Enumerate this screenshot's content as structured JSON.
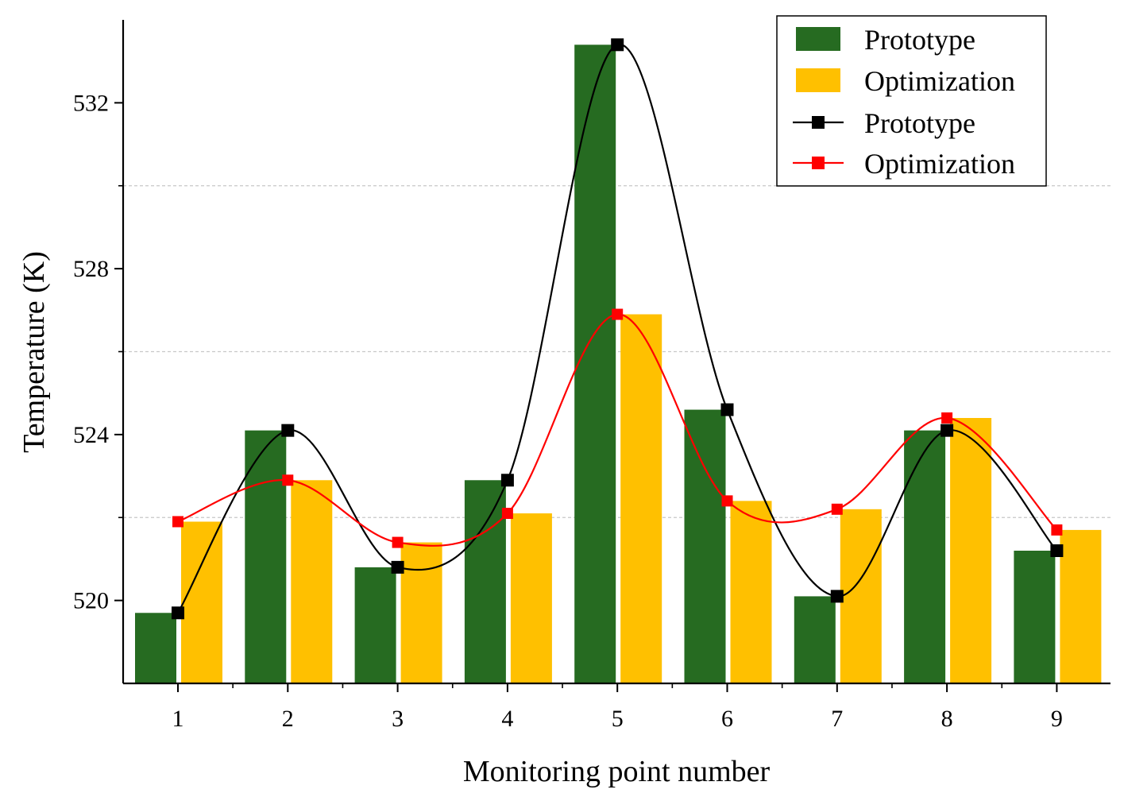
{
  "chart_data": {
    "type": "bar",
    "title": "",
    "xlabel": "Monitoring point number",
    "ylabel": "Temperature (K)",
    "categories": [
      "1",
      "2",
      "3",
      "4",
      "5",
      "6",
      "7",
      "8",
      "9"
    ],
    "ylim": [
      518,
      534
    ],
    "y_ticks": [
      520,
      524,
      528,
      532
    ],
    "y_tick_labels": [
      "520",
      "524",
      "528",
      "532"
    ],
    "gridlines": [
      522,
      526,
      530
    ],
    "bar_series": [
      {
        "name": "Prototype",
        "color": "#266B21",
        "values": [
          519.7,
          524.1,
          520.8,
          522.9,
          533.4,
          524.6,
          520.1,
          524.1,
          521.2
        ]
      },
      {
        "name": "Optimization",
        "color": "#FFC000",
        "values": [
          521.9,
          522.9,
          521.4,
          522.1,
          526.9,
          522.4,
          522.2,
          524.4,
          521.7
        ]
      }
    ],
    "line_series": [
      {
        "name": "Prototype",
        "color": "#000000",
        "values": [
          519.7,
          524.1,
          520.8,
          522.9,
          533.4,
          524.6,
          520.1,
          524.1,
          521.2
        ]
      },
      {
        "name": "Optimization",
        "color": "#FF0000",
        "values": [
          521.9,
          522.9,
          521.4,
          522.1,
          526.9,
          522.4,
          522.2,
          524.4,
          521.7
        ]
      }
    ],
    "legend": {
      "position": "top-right",
      "entries": [
        {
          "label": "Prototype",
          "kind": "bar",
          "color": "#266B21"
        },
        {
          "label": "Optimization",
          "kind": "bar",
          "color": "#FFC000"
        },
        {
          "label": "Prototype",
          "kind": "line",
          "color": "#000000"
        },
        {
          "label": "Optimization",
          "kind": "line",
          "color": "#FF0000"
        }
      ]
    }
  }
}
